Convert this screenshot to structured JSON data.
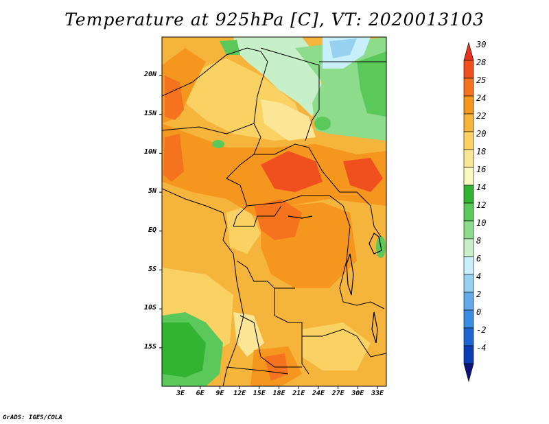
{
  "title": "Temperature at 925hPa [C], VT: 2020013103",
  "footer": "GrADS: IGES/COLA",
  "map": {
    "variable": "Temperature at 925hPa",
    "units": "C",
    "valid_time": "2020013103",
    "lat_ticks": [
      "20N",
      "15N",
      "10N",
      "5N",
      "EQ",
      "5S",
      "10S",
      "15S"
    ],
    "lon_ticks": [
      "3E",
      "6E",
      "9E",
      "12E",
      "15E",
      "18E",
      "21E",
      "24E",
      "27E",
      "30E",
      "33E"
    ]
  },
  "colorbar": {
    "labels": [
      "30",
      "28",
      "25",
      "24",
      "22",
      "20",
      "18",
      "16",
      "14",
      "12",
      "10",
      "8",
      "6",
      "4",
      "2",
      "0",
      "-2",
      "-4"
    ],
    "colors": [
      "#e8321e",
      "#f0501e",
      "#f5731f",
      "#f5961e",
      "#f5b43c",
      "#fad264",
      "#fae696",
      "#fafabe",
      "#32b432",
      "#5ac85a",
      "#8cdc8c",
      "#c8f0c8",
      "#c8f0fa",
      "#96d2f0",
      "#64aaeb",
      "#3c8ce6",
      "#1e64d2",
      "#0a3cb4",
      "#0a1478"
    ]
  }
}
